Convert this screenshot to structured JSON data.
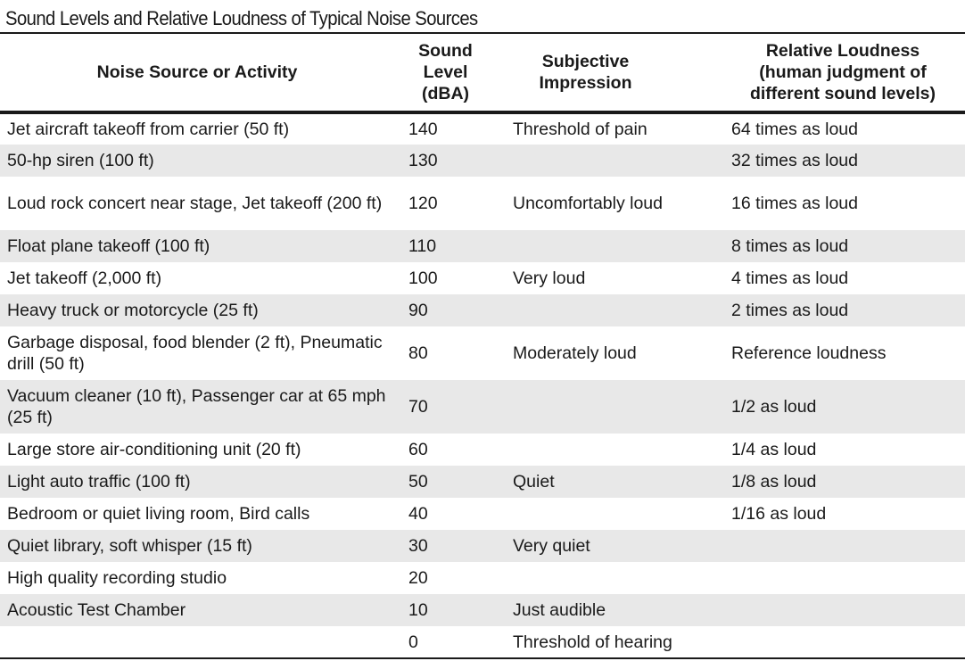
{
  "title": "Sound Levels and Relative Loudness of Typical Noise Sources",
  "headers": {
    "source": "Noise Source or Activity",
    "level_line1": "Sound",
    "level_line2": "Level",
    "level_line3": "(dBA)",
    "impression_line1": "Subjective",
    "impression_line2": "Impression",
    "loudness_line1": "Relative Loudness",
    "loudness_line2": "(human judgment of",
    "loudness_line3": "different sound levels)"
  },
  "rows": [
    {
      "source": "Jet aircraft takeoff from carrier (50 ft)",
      "level": "140",
      "impression": "Threshold of pain",
      "loudness": "64 times as loud"
    },
    {
      "source": "50-hp siren (100 ft)",
      "level": "130",
      "impression": "",
      "loudness": "32 times as loud"
    },
    {
      "source": "Loud rock concert near stage, Jet takeoff (200 ft)",
      "level": "120",
      "impression": "Uncomfortably loud",
      "loudness": "16 times as loud"
    },
    {
      "source": "Float plane takeoff (100 ft)",
      "level": "110",
      "impression": "",
      "loudness": "8 times as loud"
    },
    {
      "source": "Jet takeoff (2,000 ft)",
      "level": "100",
      "impression": "Very loud",
      "loudness": "4 times as loud"
    },
    {
      "source": "Heavy truck or motorcycle (25 ft)",
      "level": "90",
      "impression": "",
      "loudness": "2 times as loud"
    },
    {
      "source": "Garbage disposal, food blender (2 ft), Pneumatic drill (50 ft)",
      "level": "80",
      "impression": "Moderately loud",
      "loudness": "Reference loudness"
    },
    {
      "source": "Vacuum cleaner (10 ft), Passenger car at 65 mph (25 ft)",
      "level": "70",
      "impression": "",
      "loudness": "1/2 as loud"
    },
    {
      "source": "Large store air-conditioning unit (20 ft)",
      "level": "60",
      "impression": "",
      "loudness": "1/4 as loud"
    },
    {
      "source": "Light auto traffic (100 ft)",
      "level": "50",
      "impression": "Quiet",
      "loudness": "1/8 as loud"
    },
    {
      "source": "Bedroom or quiet living room, Bird calls",
      "level": "40",
      "impression": "",
      "loudness": "1/16 as loud"
    },
    {
      "source": "Quiet library, soft whisper (15 ft)",
      "level": "30",
      "impression": "Very quiet",
      "loudness": ""
    },
    {
      "source": "High quality recording studio",
      "level": "20",
      "impression": "",
      "loudness": ""
    },
    {
      "source": "Acoustic Test Chamber",
      "level": "10",
      "impression": "Just audible",
      "loudness": ""
    },
    {
      "source": "",
      "level": "0",
      "impression": "Threshold of hearing",
      "loudness": ""
    }
  ],
  "colors": {
    "stripe": "#e8e8e8",
    "rule": "#1a1a1a",
    "text": "#1a1a1a"
  }
}
